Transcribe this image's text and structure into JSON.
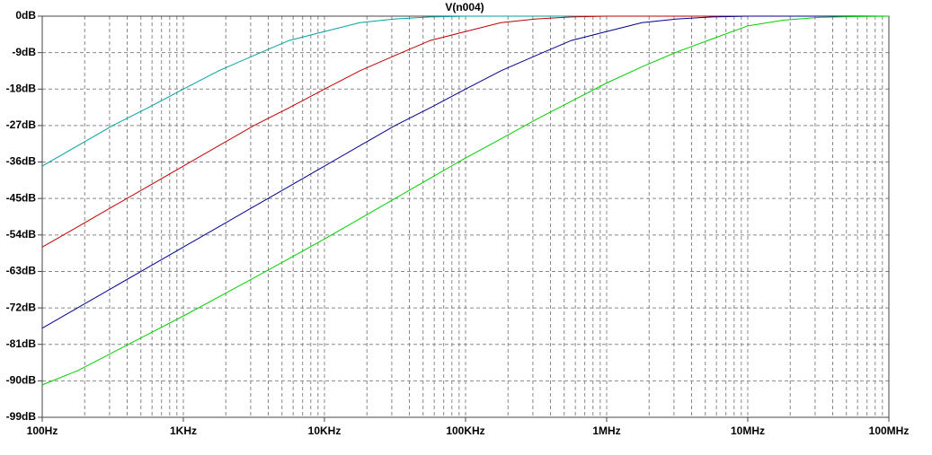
{
  "chart_data": {
    "type": "line",
    "title": "V(n004)",
    "title_color": "#00a000",
    "x": [
      100,
      178,
      316,
      562,
      1000,
      1778,
      3162,
      5623,
      10000,
      17783,
      31623,
      56234,
      100000,
      177828,
      316228,
      562341,
      1000000,
      1778279,
      3162278,
      5623413,
      10000000,
      17782794,
      31622777,
      56234133,
      100000000
    ],
    "series": [
      {
        "color": "#00a0a0",
        "values": [
          -37,
          -32,
          -27,
          -22.6,
          -18,
          -13.5,
          -9.7,
          -6,
          -3.8,
          -1.6,
          -0.7,
          -0.2,
          0,
          0,
          0,
          0,
          0,
          0,
          0,
          0,
          0,
          0,
          0,
          0,
          0
        ]
      },
      {
        "color": "#c00000",
        "values": [
          -57,
          -52,
          -47,
          -42,
          -37,
          -32,
          -27,
          -22.6,
          -18,
          -13.5,
          -9.7,
          -6,
          -3.8,
          -1.6,
          -0.7,
          -0.2,
          0,
          0,
          0,
          0,
          0,
          0,
          0,
          0,
          0
        ]
      },
      {
        "color": "#00008c",
        "values": [
          -77,
          -72,
          -67,
          -62,
          -57,
          -52,
          -47,
          -42,
          -37,
          -32,
          -27,
          -22.6,
          -18,
          -13.5,
          -9.7,
          -6,
          -3.8,
          -1.6,
          -0.7,
          -0.2,
          0,
          0,
          0,
          0,
          0
        ]
      },
      {
        "color": "#00d000",
        "values": [
          -91,
          -87.5,
          -83,
          -78.5,
          -74,
          -69.3,
          -64.6,
          -59.8,
          -55,
          -50,
          -45,
          -40,
          -35,
          -30.3,
          -25.5,
          -21,
          -16.5,
          -12.5,
          -8.8,
          -5.6,
          -2.4,
          -1,
          -0.3,
          -0.1,
          0
        ]
      }
    ],
    "xlog": true,
    "grid": true,
    "xlim": [
      100,
      100000000
    ],
    "xticks": [
      {
        "value": 100,
        "label": "100Hz"
      },
      {
        "value": 1000,
        "label": "1KHz"
      },
      {
        "value": 10000,
        "label": "10KHz"
      },
      {
        "value": 100000,
        "label": "100KHz"
      },
      {
        "value": 1000000,
        "label": "1MHz"
      },
      {
        "value": 10000000,
        "label": "10MHz"
      },
      {
        "value": 100000000,
        "label": "100MHz"
      }
    ],
    "ylim": [
      -99,
      0
    ],
    "yticks": [
      {
        "value": 0,
        "label": "0dB"
      },
      {
        "value": -9,
        "label": "-9dB"
      },
      {
        "value": -18,
        "label": "-18dB"
      },
      {
        "value": -27,
        "label": "-27dB"
      },
      {
        "value": -36,
        "label": "-36dB"
      },
      {
        "value": -45,
        "label": "-45dB"
      },
      {
        "value": -54,
        "label": "-54dB"
      },
      {
        "value": -63,
        "label": "-63dB"
      },
      {
        "value": -72,
        "label": "-72dB"
      },
      {
        "value": -81,
        "label": "-81dB"
      },
      {
        "value": -90,
        "label": "-90dB"
      },
      {
        "value": -99,
        "label": "-99dB"
      }
    ]
  }
}
